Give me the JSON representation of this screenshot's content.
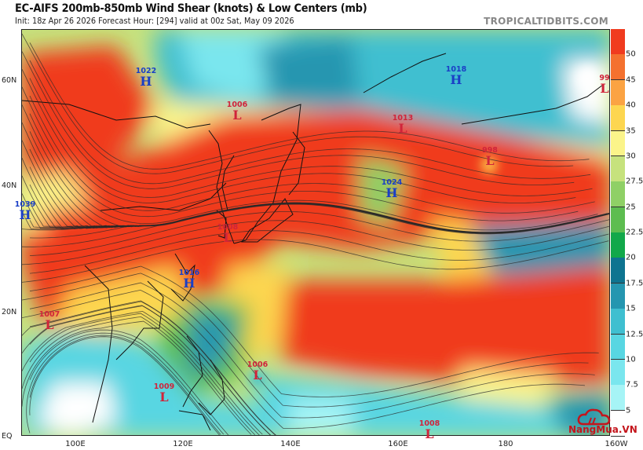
{
  "header": {
    "title": "EC-AIFS 200mb-850mb Wind Shear (knots) & Low Centers (mb)",
    "subtitle": "Init: 18z Apr 26 2026   Forecast Hour: [294]   valid at 00z Sat, May 09 2026",
    "site": "TROPICALTIDBITS.COM"
  },
  "axes": {
    "lat_labels": [
      "60N",
      "40N",
      "20N",
      "EQ"
    ],
    "lon_labels": [
      "100E",
      "120E",
      "140E",
      "160E",
      "180",
      "160W"
    ]
  },
  "colorbar": {
    "labels": [
      "50",
      "45",
      "40",
      "35",
      "30",
      "27.5",
      "25",
      "22.5",
      "20",
      "17.5",
      "15",
      "12.5",
      "10",
      "7.5",
      "5"
    ],
    "colors": [
      "#f03b1f",
      "#f4712f",
      "#fba343",
      "#fdd650",
      "#fbf48a",
      "#c6e27d",
      "#8fd066",
      "#5dbd50",
      "#12a84a",
      "#0e7490",
      "#2596b0",
      "#3fbfd0",
      "#58d6e2",
      "#7ae6ee",
      "#a6f4f6",
      "#ffffff"
    ]
  },
  "pressure_centers": [
    {
      "type": "H",
      "value": "1022"
    },
    {
      "type": "L",
      "value": "1006"
    },
    {
      "type": "H",
      "value": "1018"
    },
    {
      "type": "L",
      "value": "99"
    },
    {
      "type": "L",
      "value": "1013"
    },
    {
      "type": "L",
      "value": "998"
    },
    {
      "type": "H",
      "value": "1024"
    },
    {
      "type": "H",
      "value": "1039"
    },
    {
      "type": "L",
      "value": "1008"
    },
    {
      "type": "H",
      "value": "1016"
    },
    {
      "type": "L",
      "value": "1007"
    },
    {
      "type": "L",
      "value": "1006"
    },
    {
      "type": "L",
      "value": "1009"
    },
    {
      "type": "L",
      "value": "1008"
    }
  ],
  "watermark": "NangMua.VN"
}
